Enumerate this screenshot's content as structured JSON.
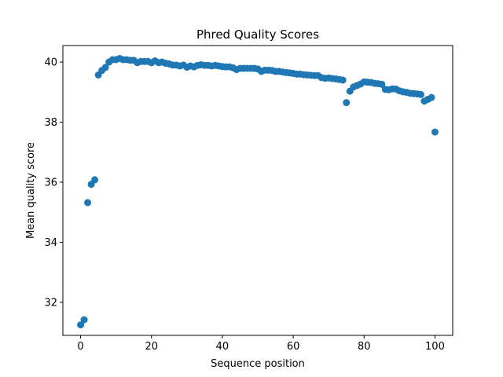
{
  "chart_data": {
    "type": "scatter",
    "title": "Phred Quality Scores",
    "xlabel": "Sequence position",
    "ylabel": "Mean quality score",
    "xlim": [
      -5,
      105
    ],
    "ylim": [
      30.9,
      40.55
    ],
    "xticks": [
      0,
      20,
      40,
      60,
      80,
      100
    ],
    "yticks": [
      32,
      34,
      36,
      38,
      40
    ],
    "grid": false,
    "color": "#1f77b4",
    "series": [
      {
        "x": [
          0,
          1,
          2,
          3,
          4,
          5,
          6,
          7,
          8,
          9,
          10,
          11,
          12,
          13,
          14,
          15,
          16,
          17,
          18,
          19,
          20,
          21,
          22,
          23,
          24,
          25,
          26,
          27,
          28,
          29,
          30,
          31,
          32,
          33,
          34,
          35,
          36,
          37,
          38,
          39,
          40,
          41,
          42,
          43,
          44,
          45,
          46,
          47,
          48,
          49,
          50,
          51,
          52,
          53,
          54,
          55,
          56,
          57,
          58,
          59,
          60,
          61,
          62,
          63,
          64,
          65,
          66,
          67,
          68,
          69,
          70,
          71,
          72,
          73,
          74,
          75,
          76,
          77,
          78,
          79,
          80,
          81,
          82,
          83,
          84,
          85,
          86,
          87,
          88,
          89,
          90,
          91,
          92,
          93,
          94,
          95,
          96,
          97,
          98,
          99,
          100
        ],
        "y": [
          31.25,
          31.42,
          35.32,
          35.93,
          36.08,
          39.57,
          39.72,
          39.82,
          40.0,
          40.08,
          40.08,
          40.12,
          40.08,
          40.08,
          40.06,
          40.06,
          39.98,
          40.02,
          40.02,
          40.02,
          39.98,
          40.04,
          39.98,
          40.0,
          39.96,
          39.94,
          39.9,
          39.9,
          39.87,
          39.9,
          39.83,
          39.87,
          39.84,
          39.89,
          39.91,
          39.89,
          39.89,
          39.87,
          39.89,
          39.87,
          39.85,
          39.84,
          39.84,
          39.81,
          39.75,
          39.79,
          39.79,
          39.79,
          39.79,
          39.79,
          39.77,
          39.69,
          39.73,
          39.73,
          39.72,
          39.69,
          39.69,
          39.67,
          39.65,
          39.64,
          39.62,
          39.6,
          39.6,
          39.58,
          39.57,
          39.56,
          39.55,
          39.55,
          39.48,
          39.46,
          39.47,
          39.45,
          39.44,
          39.42,
          39.4,
          38.65,
          39.03,
          39.17,
          39.22,
          39.27,
          39.34,
          39.33,
          39.32,
          39.29,
          39.28,
          39.26,
          39.09,
          39.08,
          39.11,
          39.1,
          39.04,
          39.01,
          38.99,
          38.96,
          38.95,
          38.94,
          38.92,
          38.7,
          38.76,
          38.82,
          37.67
        ]
      }
    ]
  }
}
